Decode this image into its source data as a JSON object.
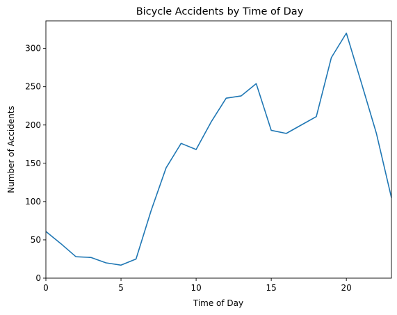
{
  "chart_data": {
    "type": "line",
    "title": "Bicycle Accidents by Time of Day",
    "xlabel": "Time of Day",
    "ylabel": "Number of Accidents",
    "xlim": [
      0,
      23
    ],
    "ylim": [
      0,
      336
    ],
    "xticks": [
      0,
      5,
      10,
      15,
      20
    ],
    "yticks": [
      0,
      50,
      100,
      150,
      200,
      250,
      300
    ],
    "grid": false,
    "series": [
      {
        "color": "#1f77b4",
        "x": [
          0,
          1,
          2,
          3,
          4,
          5,
          6,
          7,
          8,
          9,
          10,
          11,
          12,
          13,
          14,
          15,
          16,
          17,
          18,
          19,
          20,
          21,
          22,
          23
        ],
        "y": [
          61,
          45,
          28,
          27,
          20,
          17,
          25,
          88,
          144,
          176,
          168,
          204,
          235,
          238,
          254,
          193,
          189,
          200,
          211,
          288,
          320,
          255,
          189,
          105
        ]
      }
    ]
  }
}
